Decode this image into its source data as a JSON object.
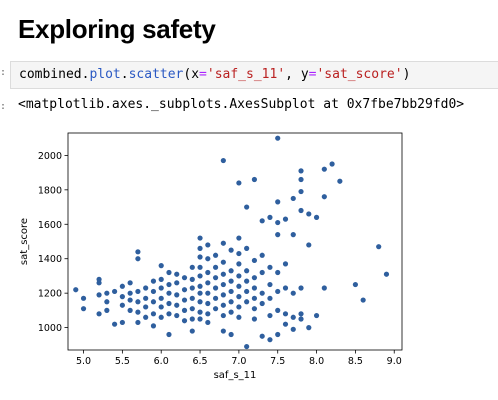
{
  "cell": {
    "heading": "Exploring safety",
    "prompt_marker": ":",
    "code": {
      "obj": "combined",
      "attr1": "plot",
      "attr2": "scatter",
      "kw1": "x",
      "arg1": "'saf_s_11'",
      "kw2": "y",
      "arg2": "'sat_score'"
    },
    "output_marker": ":",
    "output_text": "<matplotlib.axes._subplots.AxesSubplot at 0x7fbe7bb29fd0>"
  },
  "chart_data": {
    "type": "scatter",
    "xlabel": "saf_s_11",
    "ylabel": "sat_score",
    "xlim": [
      4.8,
      9.1
    ],
    "ylim": [
      870,
      2130
    ],
    "xticks": [
      "5.0",
      "5.5",
      "6.0",
      "6.5",
      "7.0",
      "7.5",
      "8.0",
      "8.5",
      "9.0"
    ],
    "yticks": [
      "1000",
      "1200",
      "1400",
      "1600",
      "1800",
      "2000"
    ],
    "point_color": "#2f5f9e",
    "points": [
      [
        4.9,
        1220
      ],
      [
        5.0,
        1170
      ],
      [
        5.0,
        1110
      ],
      [
        5.2,
        1260
      ],
      [
        5.2,
        1280
      ],
      [
        5.2,
        1190
      ],
      [
        5.2,
        1080
      ],
      [
        5.3,
        1150
      ],
      [
        5.3,
        1200
      ],
      [
        5.3,
        1100
      ],
      [
        5.4,
        1210
      ],
      [
        5.4,
        1020
      ],
      [
        5.5,
        1180
      ],
      [
        5.5,
        1130
      ],
      [
        5.5,
        1030
      ],
      [
        5.5,
        1240
      ],
      [
        5.6,
        1200
      ],
      [
        5.6,
        1160
      ],
      [
        5.6,
        1100
      ],
      [
        5.6,
        1260
      ],
      [
        5.7,
        1440
      ],
      [
        5.7,
        1400
      ],
      [
        5.7,
        1210
      ],
      [
        5.7,
        1150
      ],
      [
        5.7,
        1090
      ],
      [
        5.7,
        1030
      ],
      [
        5.8,
        1230
      ],
      [
        5.8,
        1170
      ],
      [
        5.8,
        1120
      ],
      [
        5.8,
        1060
      ],
      [
        5.9,
        1270
      ],
      [
        5.9,
        1210
      ],
      [
        5.9,
        1150
      ],
      [
        5.9,
        1080
      ],
      [
        5.9,
        1010
      ],
      [
        6.0,
        1280
      ],
      [
        6.0,
        1230
      ],
      [
        6.0,
        1170
      ],
      [
        6.0,
        1120
      ],
      [
        6.0,
        1060
      ],
      [
        6.0,
        1360
      ],
      [
        6.1,
        1320
      ],
      [
        6.1,
        1250
      ],
      [
        6.1,
        1200
      ],
      [
        6.1,
        1140
      ],
      [
        6.1,
        1080
      ],
      [
        6.1,
        960
      ],
      [
        6.2,
        1310
      ],
      [
        6.2,
        1260
      ],
      [
        6.2,
        1190
      ],
      [
        6.2,
        1130
      ],
      [
        6.2,
        1070
      ],
      [
        6.3,
        1290
      ],
      [
        6.3,
        1220
      ],
      [
        6.3,
        1160
      ],
      [
        6.3,
        1100
      ],
      [
        6.3,
        1040
      ],
      [
        6.4,
        1350
      ],
      [
        6.4,
        1280
      ],
      [
        6.4,
        1230
      ],
      [
        6.4,
        1170
      ],
      [
        6.4,
        1110
      ],
      [
        6.4,
        1050
      ],
      [
        6.4,
        980
      ],
      [
        6.5,
        1520
      ],
      [
        6.5,
        1460
      ],
      [
        6.5,
        1410
      ],
      [
        6.5,
        1350
      ],
      [
        6.5,
        1300
      ],
      [
        6.5,
        1240
      ],
      [
        6.5,
        1200
      ],
      [
        6.5,
        1150
      ],
      [
        6.5,
        1090
      ],
      [
        6.5,
        1050
      ],
      [
        6.6,
        1480
      ],
      [
        6.6,
        1400
      ],
      [
        6.6,
        1320
      ],
      [
        6.6,
        1260
      ],
      [
        6.6,
        1200
      ],
      [
        6.6,
        1140
      ],
      [
        6.6,
        1080
      ],
      [
        6.6,
        1030
      ],
      [
        6.7,
        1420
      ],
      [
        6.7,
        1350
      ],
      [
        6.7,
        1290
      ],
      [
        6.7,
        1230
      ],
      [
        6.7,
        1170
      ],
      [
        6.7,
        1110
      ],
      [
        6.8,
        1970
      ],
      [
        6.8,
        1490
      ],
      [
        6.8,
        1380
      ],
      [
        6.8,
        1310
      ],
      [
        6.8,
        1250
      ],
      [
        6.8,
        1190
      ],
      [
        6.8,
        1130
      ],
      [
        6.8,
        1070
      ],
      [
        6.8,
        980
      ],
      [
        6.9,
        1450
      ],
      [
        6.9,
        1330
      ],
      [
        6.9,
        1270
      ],
      [
        6.9,
        1210
      ],
      [
        6.9,
        1150
      ],
      [
        6.9,
        1090
      ],
      [
        6.9,
        960
      ],
      [
        7.0,
        1840
      ],
      [
        7.0,
        1520
      ],
      [
        7.0,
        1430
      ],
      [
        7.0,
        1370
      ],
      [
        7.0,
        1300
      ],
      [
        7.0,
        1240
      ],
      [
        7.0,
        1180
      ],
      [
        7.0,
        1120
      ],
      [
        7.0,
        1060
      ],
      [
        7.1,
        1700
      ],
      [
        7.1,
        1460
      ],
      [
        7.1,
        1330
      ],
      [
        7.1,
        1270
      ],
      [
        7.1,
        1210
      ],
      [
        7.1,
        1150
      ],
      [
        7.1,
        890
      ],
      [
        7.2,
        1860
      ],
      [
        7.2,
        1390
      ],
      [
        7.2,
        1290
      ],
      [
        7.2,
        1230
      ],
      [
        7.2,
        1170
      ],
      [
        7.2,
        1110
      ],
      [
        7.2,
        1050
      ],
      [
        7.3,
        1620
      ],
      [
        7.3,
        1420
      ],
      [
        7.3,
        1320
      ],
      [
        7.3,
        1200
      ],
      [
        7.3,
        1140
      ],
      [
        7.3,
        950
      ],
      [
        7.4,
        1640
      ],
      [
        7.4,
        1350
      ],
      [
        7.4,
        1250
      ],
      [
        7.4,
        1170
      ],
      [
        7.4,
        1070
      ],
      [
        7.4,
        930
      ],
      [
        7.5,
        2100
      ],
      [
        7.5,
        1730
      ],
      [
        7.5,
        1610
      ],
      [
        7.5,
        1540
      ],
      [
        7.5,
        1320
      ],
      [
        7.5,
        1210
      ],
      [
        7.5,
        1100
      ],
      [
        7.5,
        960
      ],
      [
        7.6,
        1630
      ],
      [
        7.6,
        1370
      ],
      [
        7.6,
        1230
      ],
      [
        7.6,
        1080
      ],
      [
        7.6,
        1020
      ],
      [
        7.7,
        1750
      ],
      [
        7.7,
        1540
      ],
      [
        7.7,
        1200
      ],
      [
        7.7,
        1060
      ],
      [
        7.7,
        990
      ],
      [
        7.8,
        1910
      ],
      [
        7.8,
        1860
      ],
      [
        7.8,
        1790
      ],
      [
        7.8,
        1680
      ],
      [
        7.8,
        1230
      ],
      [
        7.8,
        1080
      ],
      [
        7.8,
        1050
      ],
      [
        7.9,
        1660
      ],
      [
        7.9,
        1480
      ],
      [
        7.9,
        1000
      ],
      [
        8.0,
        1640
      ],
      [
        8.0,
        1070
      ],
      [
        8.1,
        1920
      ],
      [
        8.1,
        1760
      ],
      [
        8.1,
        1230
      ],
      [
        8.2,
        1950
      ],
      [
        8.3,
        1850
      ],
      [
        8.5,
        1250
      ],
      [
        8.6,
        1160
      ],
      [
        8.8,
        1470
      ],
      [
        8.9,
        1310
      ]
    ]
  }
}
